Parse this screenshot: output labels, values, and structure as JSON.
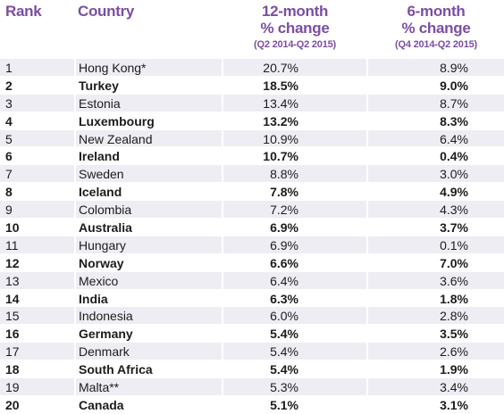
{
  "header": {
    "rank": "Rank",
    "country": "Country",
    "col12_line1": "12-month",
    "col12_line2": "% change",
    "col12_sub": "(Q2 2014-Q2 2015)",
    "col6_line1": "6-month",
    "col6_line2": "% change",
    "col6_sub": "(Q4 2014-Q2 2015)"
  },
  "colors": {
    "header_text": "#7b4ea3",
    "odd_row_bg": "#eeedf3",
    "even_row_bg": "#ffffff",
    "body_text": "#1c1c1c"
  },
  "rows": [
    {
      "rank": "1",
      "country": "Hong Kong*",
      "change12": "20.7%",
      "change6": "8.9%"
    },
    {
      "rank": "2",
      "country": "Turkey",
      "change12": "18.5%",
      "change6": "9.0%"
    },
    {
      "rank": "3",
      "country": "Estonia",
      "change12": "13.4%",
      "change6": "8.7%"
    },
    {
      "rank": "4",
      "country": "Luxembourg",
      "change12": "13.2%",
      "change6": "8.3%"
    },
    {
      "rank": "5",
      "country": "New Zealand",
      "change12": "10.9%",
      "change6": "6.4%"
    },
    {
      "rank": "6",
      "country": "Ireland",
      "change12": "10.7%",
      "change6": "0.4%"
    },
    {
      "rank": "7",
      "country": "Sweden",
      "change12": "8.8%",
      "change6": "3.0%"
    },
    {
      "rank": "8",
      "country": "Iceland",
      "change12": "7.8%",
      "change6": "4.9%"
    },
    {
      "rank": "9",
      "country": "Colombia",
      "change12": "7.2%",
      "change6": "4.3%"
    },
    {
      "rank": "10",
      "country": "Australia",
      "change12": "6.9%",
      "change6": "3.7%"
    },
    {
      "rank": "11",
      "country": "Hungary",
      "change12": "6.9%",
      "change6": "0.1%"
    },
    {
      "rank": "12",
      "country": "Norway",
      "change12": "6.6%",
      "change6": "7.0%"
    },
    {
      "rank": "13",
      "country": "Mexico",
      "change12": "6.4%",
      "change6": "3.6%"
    },
    {
      "rank": "14",
      "country": "India",
      "change12": "6.3%",
      "change6": "1.8%"
    },
    {
      "rank": "15",
      "country": "Indonesia",
      "change12": "6.0%",
      "change6": "2.8%"
    },
    {
      "rank": "16",
      "country": "Germany",
      "change12": "5.4%",
      "change6": "3.5%"
    },
    {
      "rank": "17",
      "country": "Denmark",
      "change12": "5.4%",
      "change6": "2.6%"
    },
    {
      "rank": "18",
      "country": "South Africa",
      "change12": "5.4%",
      "change6": "1.9%"
    },
    {
      "rank": "19",
      "country": "Malta**",
      "change12": "5.3%",
      "change6": "3.4%"
    },
    {
      "rank": "20",
      "country": "Canada",
      "change12": "5.1%",
      "change6": "3.1%"
    }
  ]
}
